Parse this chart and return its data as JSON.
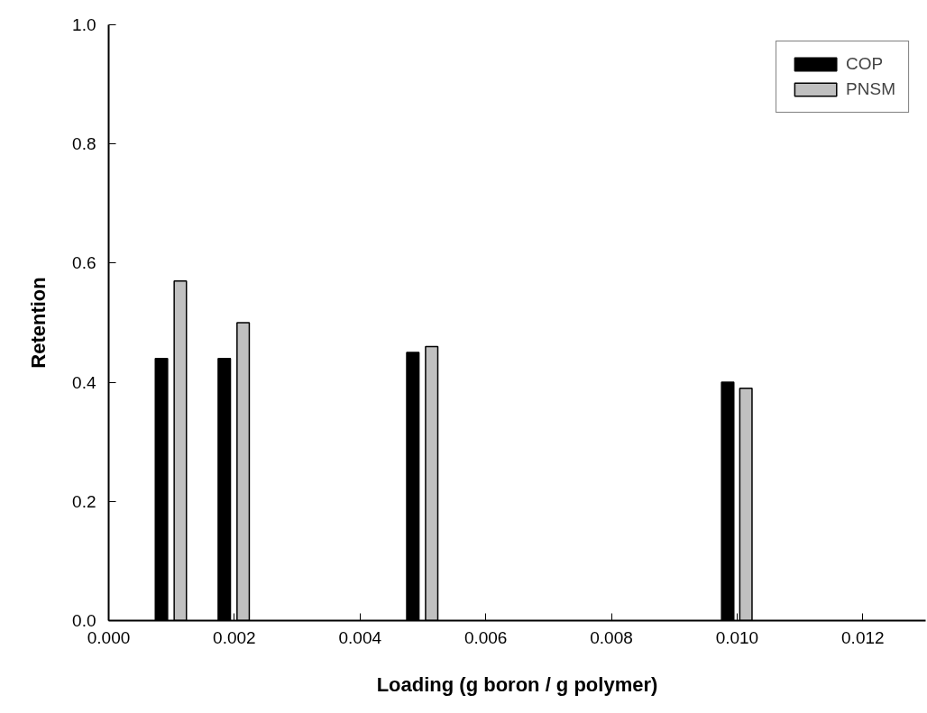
{
  "chart_data": {
    "type": "bar",
    "xlabel": "Loading (g boron / g polymer)",
    "ylabel": "Retention",
    "series": [
      {
        "name": "COP",
        "color": "#000000",
        "x": [
          0.00084,
          0.00184,
          0.00484,
          0.00985
        ],
        "values": [
          0.44,
          0.44,
          0.45,
          0.4
        ]
      },
      {
        "name": "PNSM",
        "color": "#c0c0c0",
        "x": [
          0.00114,
          0.00214,
          0.00514,
          0.01014
        ],
        "values": [
          0.57,
          0.5,
          0.46,
          0.39
        ]
      }
    ],
    "xlim": [
      0,
      0.013
    ],
    "ylim": [
      0,
      1
    ],
    "xticks": [
      {
        "value": 0,
        "label": "0.000"
      },
      {
        "value": 0.002,
        "label": "0.002"
      },
      {
        "value": 0.004,
        "label": "0.004"
      },
      {
        "value": 0.006,
        "label": "0.006"
      },
      {
        "value": 0.008,
        "label": "0.008"
      },
      {
        "value": 0.01,
        "label": "0.010"
      },
      {
        "value": 0.012,
        "label": "0.012"
      }
    ],
    "yticks": [
      {
        "value": 0,
        "label": "0.0"
      },
      {
        "value": 0.2,
        "label": "0.2"
      },
      {
        "value": 0.4,
        "label": "0.4"
      },
      {
        "value": 0.6,
        "label": "0.6"
      },
      {
        "value": 0.8,
        "label": "0.8"
      },
      {
        "value": 1,
        "label": "1.0"
      }
    ],
    "grid": false,
    "legend": "top right"
  }
}
